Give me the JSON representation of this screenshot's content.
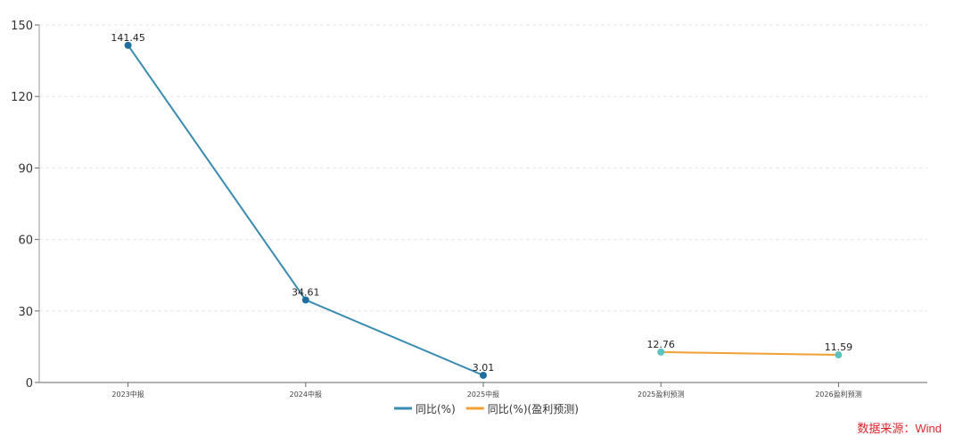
{
  "chart_data": {
    "type": "line",
    "categories": [
      "2023中报",
      "2024中报",
      "2025中报",
      "2025盈利预测",
      "2026盈利预测"
    ],
    "ylim": [
      0,
      150
    ],
    "yticks": [
      0,
      30,
      60,
      90,
      120,
      150
    ],
    "grid": true,
    "legend_position": "bottom",
    "series": [
      {
        "name": "同比(%)",
        "values": [
          141.45,
          34.61,
          3.01,
          null,
          null
        ],
        "color": "#3a8bb0",
        "marker_color": "#1f6e9e"
      },
      {
        "name": "同比(%)(盈利预测)",
        "values": [
          null,
          null,
          null,
          12.76,
          11.59
        ],
        "color": "#f0a035",
        "marker_color": "#5cc4c0"
      }
    ]
  },
  "source": "数据来源：Wind"
}
